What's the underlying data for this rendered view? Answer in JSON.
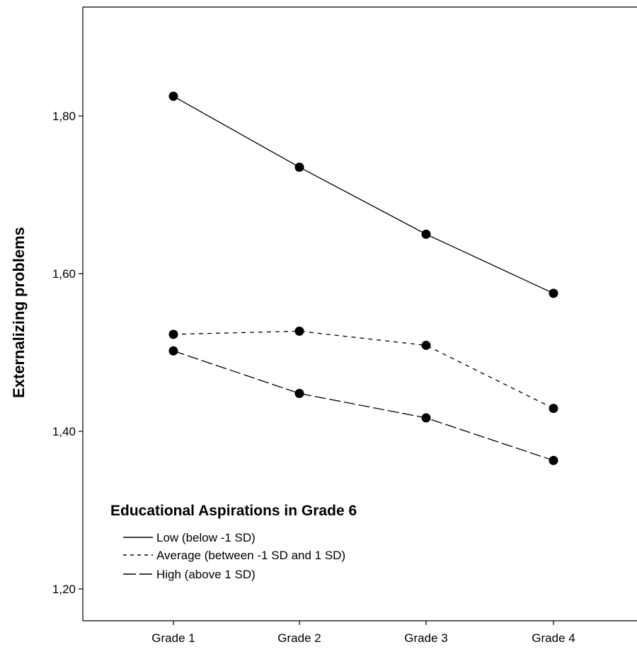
{
  "chart_data": {
    "type": "line",
    "categories": [
      "Grade 1",
      "Grade 2",
      "Grade 3",
      "Grade 4"
    ],
    "ylabel": "Externalizing problems",
    "xlabel": "",
    "yticks": [
      "1,20",
      "1,40",
      "1,60",
      "1,80"
    ],
    "ytick_values": [
      1.2,
      1.4,
      1.6,
      1.8
    ],
    "ylim": [
      1.12,
      1.94
    ],
    "grid": false,
    "legend_title": "Educational Aspirations in Grade 6",
    "legend_position": "bottom-left",
    "series": [
      {
        "name": "Low (below -1 SD)",
        "values": [
          1.825,
          1.735,
          1.65,
          1.575
        ],
        "dash": "solid"
      },
      {
        "name": "Average (between -1 SD and 1 SD)",
        "values": [
          1.523,
          1.527,
          1.509,
          1.429
        ],
        "dash": "short-dash"
      },
      {
        "name": "High (above 1 SD)",
        "values": [
          1.502,
          1.448,
          1.417,
          1.363
        ],
        "dash": "long-dash"
      }
    ]
  }
}
